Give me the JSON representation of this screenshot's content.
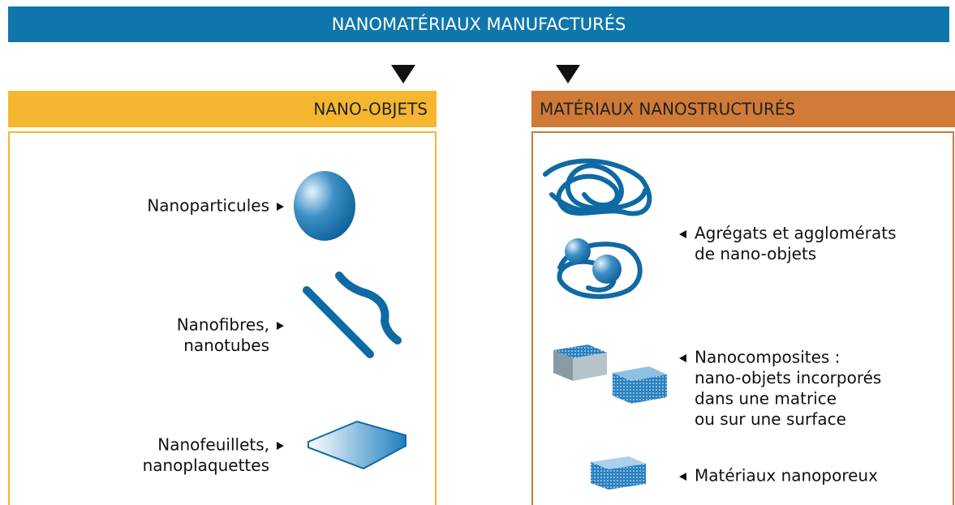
{
  "header": {
    "title": "NANOMATÉRIAUX MANUFACTURÉS"
  },
  "left": {
    "title": "NANO-OBJETS",
    "items": [
      {
        "lines": [
          "Nanoparticules"
        ]
      },
      {
        "lines": [
          "Nanofibres,",
          "nanotubes"
        ]
      },
      {
        "lines": [
          "Nanofeuillets,",
          "nanoplaquettes"
        ]
      }
    ]
  },
  "right": {
    "title": "MATÉRIAUX NANOSTRUCTURÉS",
    "items": [
      {
        "lines": [
          "Agrégats et agglomérats",
          "de nano-objets"
        ]
      },
      {
        "lines": [
          "Nanocomposites :",
          "nano-objets incorporés",
          "dans une matrice",
          "ou sur une surface"
        ]
      },
      {
        "lines": [
          "Matériaux nanoporeux"
        ]
      }
    ]
  }
}
